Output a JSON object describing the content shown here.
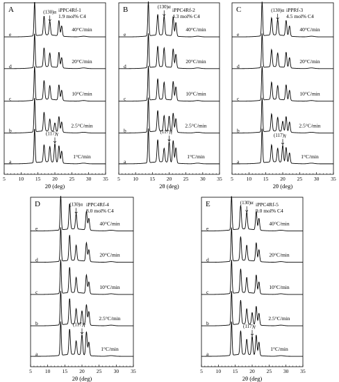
{
  "chart_data": [
    {
      "type": "line",
      "panel": "A",
      "sample": "iPPC4Rf-1",
      "composition": "1.9 mol% C4",
      "xlabel": "2θ (deg)",
      "xlim": [
        5,
        35
      ],
      "xticks": [
        5,
        10,
        15,
        20,
        25,
        30,
        35
      ],
      "annotations": [
        "(130)α",
        "(117)γ"
      ],
      "series": [
        {
          "label": "a",
          "rate": "1°C/min",
          "peaks": [
            [
              14.0,
              1.0
            ],
            [
              16.8,
              0.5
            ],
            [
              18.5,
              0.45
            ],
            [
              20.0,
              0.55
            ],
            [
              21.2,
              0.5
            ],
            [
              22.0,
              0.35
            ]
          ]
        },
        {
          "label": "b",
          "rate": "2.5°C/min",
          "peaks": [
            [
              14.0,
              1.0
            ],
            [
              16.8,
              0.55
            ],
            [
              18.5,
              0.35
            ],
            [
              20.0,
              0.25
            ],
            [
              21.2,
              0.45
            ],
            [
              22.0,
              0.3
            ]
          ]
        },
        {
          "label": "c",
          "rate": "10°C/min",
          "peaks": [
            [
              14.0,
              1.0
            ],
            [
              16.8,
              0.55
            ],
            [
              18.5,
              0.4
            ],
            [
              21.2,
              0.45
            ],
            [
              22.0,
              0.3
            ]
          ]
        },
        {
          "label": "d",
          "rate": "20°C/min",
          "peaks": [
            [
              14.0,
              1.0
            ],
            [
              16.8,
              0.55
            ],
            [
              18.5,
              0.4
            ],
            [
              21.2,
              0.45
            ],
            [
              22.0,
              0.3
            ]
          ]
        },
        {
          "label": "e",
          "rate": "40°C/min",
          "peaks": [
            [
              14.0,
              1.0
            ],
            [
              16.8,
              0.55
            ],
            [
              18.5,
              0.4
            ],
            [
              21.2,
              0.45
            ],
            [
              22.0,
              0.3
            ]
          ]
        }
      ]
    },
    {
      "type": "line",
      "panel": "B",
      "sample": "iPPC4Rf-2",
      "composition": "4.3 mol% C4",
      "xlabel": "2θ (deg)",
      "xlim": [
        5,
        35
      ],
      "xticks": [
        5,
        10,
        15,
        20,
        25,
        30,
        35
      ],
      "annotations": [
        "(130)α",
        "(117)γ"
      ],
      "series": [
        {
          "label": "a",
          "rate": "1°C/min",
          "peaks": [
            [
              13.8,
              1.0
            ],
            [
              16.6,
              0.65
            ],
            [
              18.5,
              0.4
            ],
            [
              20.0,
              0.6
            ],
            [
              21.2,
              0.65
            ],
            [
              22.0,
              0.45
            ]
          ]
        },
        {
          "label": "b",
          "rate": "2.5°C/min",
          "peaks": [
            [
              13.8,
              1.0
            ],
            [
              16.6,
              0.6
            ],
            [
              18.5,
              0.45
            ],
            [
              20.0,
              0.45
            ],
            [
              21.2,
              0.55
            ],
            [
              22.0,
              0.4
            ]
          ]
        },
        {
          "label": "c",
          "rate": "10°C/min",
          "peaks": [
            [
              13.8,
              1.0
            ],
            [
              16.6,
              0.6
            ],
            [
              18.5,
              0.5
            ],
            [
              21.2,
              0.55
            ],
            [
              22.0,
              0.4
            ]
          ]
        },
        {
          "label": "d",
          "rate": "20°C/min",
          "peaks": [
            [
              13.8,
              1.0
            ],
            [
              16.6,
              0.6
            ],
            [
              18.5,
              0.55
            ],
            [
              21.2,
              0.55
            ],
            [
              22.0,
              0.4
            ]
          ]
        },
        {
          "label": "e",
          "rate": "40°C/min",
          "peaks": [
            [
              13.8,
              1.0
            ],
            [
              16.6,
              0.6
            ],
            [
              18.5,
              0.55
            ],
            [
              21.2,
              0.55
            ],
            [
              22.0,
              0.4
            ]
          ]
        }
      ]
    },
    {
      "type": "line",
      "panel": "C",
      "sample": "iPPRf-3",
      "composition": "4.5 mol% C4",
      "xlabel": "2θ (deg)",
      "xlim": [
        5,
        35
      ],
      "xticks": [
        5,
        10,
        15,
        20,
        25,
        30,
        35
      ],
      "annotations": [
        "(130)α",
        "(117)γ"
      ],
      "series": [
        {
          "label": "a",
          "rate": "1°C/min",
          "peaks": [
            [
              13.9,
              1.0
            ],
            [
              16.7,
              0.5
            ],
            [
              18.5,
              0.4
            ],
            [
              20.0,
              0.5
            ],
            [
              21.0,
              0.45
            ],
            [
              22.0,
              0.3
            ]
          ]
        },
        {
          "label": "b",
          "rate": "2.5°C/min",
          "peaks": [
            [
              13.9,
              1.0
            ],
            [
              16.7,
              0.5
            ],
            [
              18.5,
              0.4
            ],
            [
              20.0,
              0.3
            ],
            [
              21.0,
              0.45
            ],
            [
              22.0,
              0.3
            ]
          ]
        },
        {
          "label": "c",
          "rate": "10°C/min",
          "peaks": [
            [
              13.9,
              1.0
            ],
            [
              16.7,
              0.5
            ],
            [
              18.5,
              0.4
            ],
            [
              21.0,
              0.45
            ],
            [
              22.0,
              0.3
            ]
          ]
        },
        {
          "label": "d",
          "rate": "20°C/min",
          "peaks": [
            [
              13.9,
              1.0
            ],
            [
              16.7,
              0.5
            ],
            [
              18.5,
              0.4
            ],
            [
              21.0,
              0.45
            ],
            [
              22.0,
              0.3
            ]
          ]
        },
        {
          "label": "e",
          "rate": "40°C/min",
          "peaks": [
            [
              13.9,
              1.0
            ],
            [
              16.7,
              0.5
            ],
            [
              18.5,
              0.45
            ],
            [
              21.0,
              0.45
            ],
            [
              22.0,
              0.3
            ]
          ]
        }
      ]
    },
    {
      "type": "line",
      "panel": "D",
      "sample": "iPPC4Rf-4",
      "composition": "8.0 mol% C4",
      "xlabel": "2θ (deg)",
      "xlim": [
        5,
        35
      ],
      "xticks": [
        5,
        10,
        15,
        20,
        25,
        30,
        35
      ],
      "annotations": [
        "(130)α",
        "(117)γ"
      ],
      "series": [
        {
          "label": "a",
          "rate": "1°C/min",
          "peaks": [
            [
              13.8,
              1.0
            ],
            [
              16.4,
              0.75
            ],
            [
              18.3,
              0.4
            ],
            [
              20.0,
              0.6
            ],
            [
              21.3,
              0.7
            ],
            [
              22.0,
              0.4
            ]
          ]
        },
        {
          "label": "b",
          "rate": "2.5°C/min",
          "peaks": [
            [
              13.8,
              1.0
            ],
            [
              16.4,
              0.75
            ],
            [
              18.3,
              0.45
            ],
            [
              20.0,
              0.4
            ],
            [
              21.3,
              0.6
            ],
            [
              22.0,
              0.4
            ]
          ]
        },
        {
          "label": "c",
          "rate": "10°C/min",
          "peaks": [
            [
              13.8,
              1.0
            ],
            [
              16.4,
              0.75
            ],
            [
              18.3,
              0.45
            ],
            [
              21.3,
              0.55
            ],
            [
              22.0,
              0.35
            ]
          ]
        },
        {
          "label": "d",
          "rate": "20°C/min",
          "peaks": [
            [
              13.8,
              1.0
            ],
            [
              16.4,
              0.75
            ],
            [
              18.3,
              0.45
            ],
            [
              21.3,
              0.55
            ],
            [
              22.0,
              0.35
            ]
          ]
        },
        {
          "label": "e",
          "rate": "40°C/min",
          "peaks": [
            [
              13.8,
              1.0
            ],
            [
              16.4,
              0.75
            ],
            [
              18.3,
              0.45
            ],
            [
              21.3,
              0.55
            ],
            [
              22.0,
              0.35
            ]
          ]
        }
      ]
    },
    {
      "type": "line",
      "panel": "E",
      "sample": "iPPC4Rf-5",
      "composition": "9.0 mol% C4",
      "xlabel": "2θ (deg)",
      "xlim": [
        5,
        35
      ],
      "xticks": [
        5,
        10,
        15,
        20,
        25,
        30,
        35
      ],
      "annotations": [
        "(130)α",
        "(117)γ"
      ],
      "series": [
        {
          "label": "a",
          "rate": "1°C/min",
          "peaks": [
            [
              13.9,
              1.0
            ],
            [
              16.6,
              0.7
            ],
            [
              18.4,
              0.45
            ],
            [
              20.0,
              0.55
            ],
            [
              21.2,
              0.6
            ],
            [
              22.0,
              0.4
            ]
          ]
        },
        {
          "label": "b",
          "rate": "2.5°C/min",
          "peaks": [
            [
              13.9,
              1.0
            ],
            [
              16.6,
              0.7
            ],
            [
              18.4,
              0.45
            ],
            [
              20.0,
              0.35
            ],
            [
              21.2,
              0.55
            ],
            [
              22.0,
              0.35
            ]
          ]
        },
        {
          "label": "c",
          "rate": "10°C/min",
          "peaks": [
            [
              13.9,
              1.0
            ],
            [
              16.6,
              0.7
            ],
            [
              18.4,
              0.45
            ],
            [
              21.2,
              0.55
            ],
            [
              22.0,
              0.35
            ]
          ]
        },
        {
          "label": "d",
          "rate": "20°C/min",
          "peaks": [
            [
              13.9,
              1.0
            ],
            [
              16.6,
              0.7
            ],
            [
              18.4,
              0.45
            ],
            [
              21.2,
              0.55
            ],
            [
              22.0,
              0.35
            ]
          ]
        },
        {
          "label": "e",
          "rate": "40°C/min",
          "peaks": [
            [
              13.9,
              1.0
            ],
            [
              16.6,
              0.7
            ],
            [
              18.4,
              0.5
            ],
            [
              21.2,
              0.55
            ],
            [
              22.0,
              0.35
            ]
          ]
        }
      ]
    }
  ]
}
